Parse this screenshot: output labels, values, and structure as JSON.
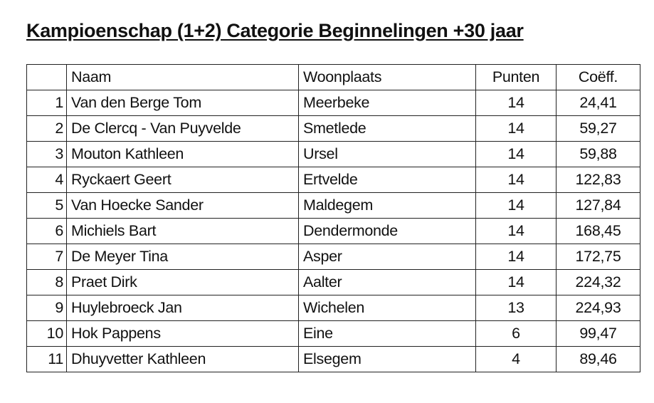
{
  "title": "Kampioenschap (1+2) Categorie Beginnelingen +30 jaar",
  "table": {
    "headers": [
      "",
      "Naam",
      "Woonplaats",
      "Punten",
      "Coëff."
    ],
    "rows": [
      [
        "1",
        "Van den Berge Tom",
        "Meerbeke",
        "14",
        "24,41"
      ],
      [
        "2",
        "De Clercq - Van Puyvelde",
        "Smetlede",
        "14",
        "59,27"
      ],
      [
        "3",
        "Mouton Kathleen",
        "Ursel",
        "14",
        "59,88"
      ],
      [
        "4",
        "Ryckaert Geert",
        "Ertvelde",
        "14",
        "122,83"
      ],
      [
        "5",
        "Van Hoecke Sander",
        "Maldegem",
        "14",
        "127,84"
      ],
      [
        "6",
        "Michiels Bart",
        "Dendermonde",
        "14",
        "168,45"
      ],
      [
        "7",
        "De Meyer Tina",
        "Asper",
        "14",
        "172,75"
      ],
      [
        "8",
        "Praet Dirk",
        "Aalter",
        "14",
        "224,32"
      ],
      [
        "9",
        "Huylebroeck Jan",
        "Wichelen",
        "13",
        "224,93"
      ],
      [
        "10",
        "Hok Pappens",
        "Eine",
        "6",
        "99,47"
      ],
      [
        "11",
        "Dhuyvetter Kathleen",
        "Elsegem",
        "4",
        "89,46"
      ]
    ]
  }
}
